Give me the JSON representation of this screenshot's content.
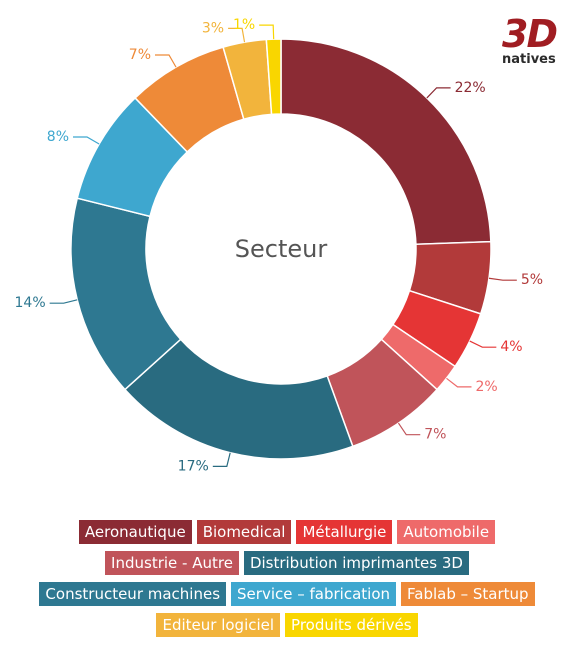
{
  "logo": {
    "main": "3D",
    "sub": "natives"
  },
  "chart_data": {
    "type": "pie",
    "variant": "donut",
    "center_label": "Secteur",
    "categories": [
      "Aeronautique",
      "Biomedical",
      "Métallurgie",
      "Automobile",
      "Industrie - Autre",
      "Distribution imprimantes 3D",
      "Constructeur machines",
      "Service – fabrication",
      "Fablab – Startup",
      "Editeur logiciel",
      "Produits dérivés"
    ],
    "values": [
      22,
      5,
      4,
      2,
      7,
      17,
      14,
      8,
      7,
      3,
      1
    ],
    "labels": [
      "22%",
      "5%",
      "4%",
      "2%",
      "7%",
      "17%",
      "14%",
      "8%",
      "7%",
      "3%",
      "1%"
    ],
    "colors": [
      "#8b2b34",
      "#b23a3a",
      "#e53535",
      "#ee6a6a",
      "#c0545a",
      "#296b80",
      "#2e7891",
      "#3ea7cf",
      "#ee8a38",
      "#f2b43c",
      "#f9d600"
    ],
    "legend_position": "bottom"
  }
}
